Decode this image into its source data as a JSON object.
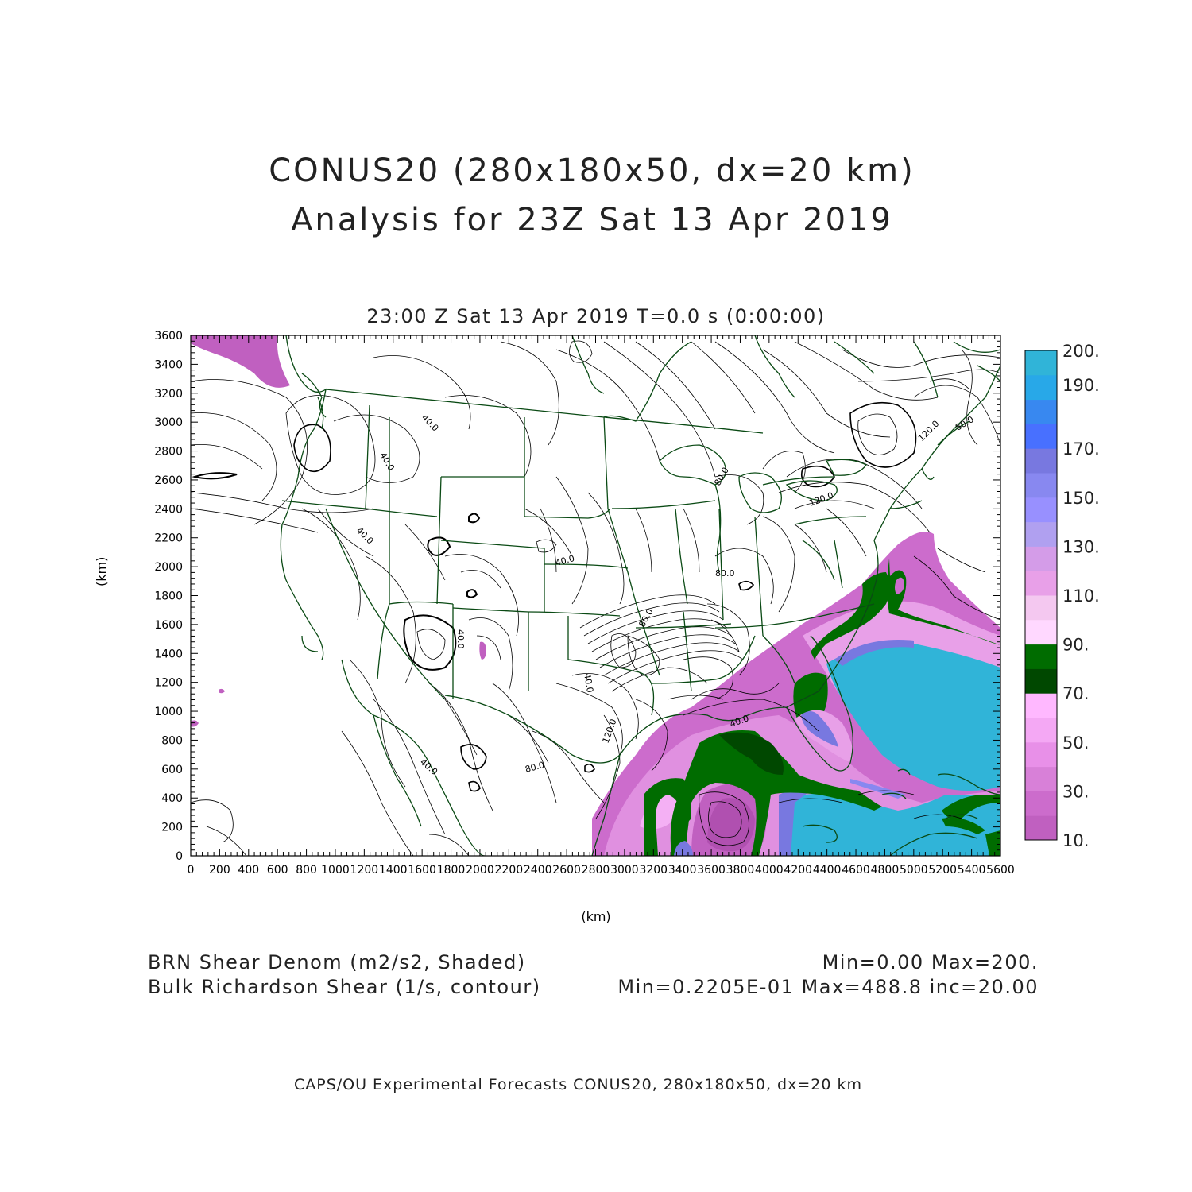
{
  "header": {
    "title_line1": "CONUS20 (280x180x50, dx=20 km)",
    "title_line2": "Analysis for 23Z Sat 13 Apr 2019",
    "subtitle": "23:00 Z Sat 13 Apr 2019    T=0.0 s (0:00:00)"
  },
  "axes": {
    "xlabel": "(km)",
    "ylabel": "(km)",
    "x_ticks": [
      "0",
      "200",
      "400",
      "600",
      "800",
      "1000",
      "1200",
      "1400",
      "1600",
      "1800",
      "2000",
      "2200",
      "2400",
      "2600",
      "2800",
      "3000",
      "3200",
      "3400",
      "3600",
      "3800",
      "4000",
      "4200",
      "4400",
      "4600",
      "4800",
      "5000",
      "5200",
      "5400",
      "5600"
    ],
    "y_ticks": [
      "0",
      "200",
      "400",
      "600",
      "800",
      "1000",
      "1200",
      "1400",
      "1600",
      "1800",
      "2000",
      "2200",
      "2400",
      "2600",
      "2800",
      "3000",
      "3200",
      "3400",
      "3600"
    ],
    "xlim": [
      0,
      5600
    ],
    "ylim": [
      0,
      3600
    ]
  },
  "colorbar": {
    "labels": [
      "10.",
      "30.",
      "50.",
      "70.",
      "90.",
      "110.",
      "130.",
      "150.",
      "170.",
      "190.",
      "200."
    ],
    "colors": [
      "#c060c0",
      "#cc6ccc",
      "#d880d8",
      "#e890e8",
      "#f4a8f4",
      "#ffb8ff",
      "#004800",
      "#006c00",
      "#ffd8ff",
      "#f4c8f0",
      "#e8a0e8",
      "#d49ce8",
      "#b0a0f0",
      "#9890ff",
      "#8888f0",
      "#7878e0",
      "#4870ff",
      "#3888f0",
      "#28a8e8",
      "#30b4d8"
    ]
  },
  "contour_labels": [
    "40.0",
    "40.0",
    "40.0",
    "40.0",
    "40.0",
    "40.0",
    "40.0",
    "80.0",
    "80.0",
    "80.0",
    "80.0",
    "120.0",
    "120.0",
    "120.0",
    "80.0",
    "40.0"
  ],
  "legend": {
    "shaded_name": "BRN Shear Denom (m2/s2, Shaded)",
    "shaded_range": "Min=0.00 Max=200.",
    "contour_name": "Bulk Richardson Shear (1/s, contour)",
    "contour_range": "Min=0.2205E-01 Max=488.8 inc=20.00"
  },
  "footer": "CAPS/OU Experimental Forecasts  CONUS20, 280x180x50, dx=20 km",
  "colors": {
    "state_lines": "#0a4a14",
    "contours": "#000000"
  }
}
